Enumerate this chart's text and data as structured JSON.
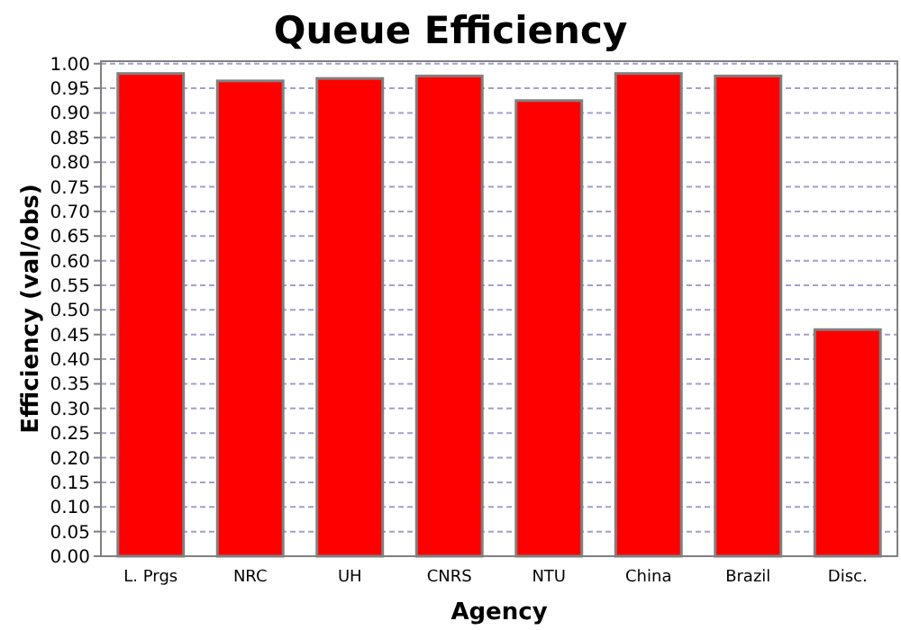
{
  "chart_data": {
    "type": "bar",
    "title": "Queue Efficiency",
    "xlabel": "Agency",
    "ylabel": "Efficiency (val/obs)",
    "categories": [
      "L. Prgs",
      "NRC",
      "UH",
      "CNRS",
      "NTU",
      "China",
      "Brazil",
      "Disc."
    ],
    "values": [
      0.98,
      0.965,
      0.97,
      0.975,
      0.925,
      0.98,
      0.975,
      0.46
    ],
    "color": "#ff0000",
    "ylim": [
      0,
      1.005
    ],
    "yticks": [
      {
        "value": 0,
        "label": "0.00"
      },
      {
        "value": 0.05,
        "label": "0.05"
      },
      {
        "value": 0.1,
        "label": "0.10"
      },
      {
        "value": 0.15,
        "label": "0.15"
      },
      {
        "value": 0.2,
        "label": "0.20"
      },
      {
        "value": 0.25,
        "label": "0.25"
      },
      {
        "value": 0.3,
        "label": "0.30"
      },
      {
        "value": 0.35,
        "label": "0.35"
      },
      {
        "value": 0.4,
        "label": "0.40"
      },
      {
        "value": 0.45,
        "label": "0.45"
      },
      {
        "value": 0.5,
        "label": "0.50"
      },
      {
        "value": 0.55,
        "label": "0.55"
      },
      {
        "value": 0.6,
        "label": "0.60"
      },
      {
        "value": 0.65,
        "label": "0.65"
      },
      {
        "value": 0.7,
        "label": "0.70"
      },
      {
        "value": 0.75,
        "label": "0.75"
      },
      {
        "value": 0.8,
        "label": "0.80"
      },
      {
        "value": 0.85,
        "label": "0.85"
      },
      {
        "value": 0.9,
        "label": "0.90"
      },
      {
        "value": 0.95,
        "label": "0.95"
      },
      {
        "value": 1,
        "label": "1.00"
      }
    ],
    "grid": "y"
  }
}
